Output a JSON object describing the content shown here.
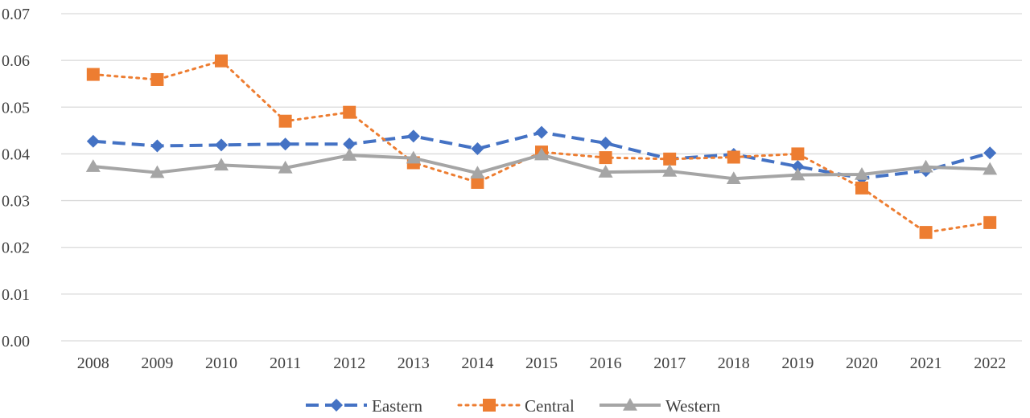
{
  "chart_data": {
    "type": "line",
    "title": "",
    "xlabel": "",
    "ylabel": "",
    "categories": [
      "2008",
      "2009",
      "2010",
      "2011",
      "2012",
      "2013",
      "2014",
      "2015",
      "2016",
      "2017",
      "2018",
      "2019",
      "2020",
      "2021",
      "2022"
    ],
    "ylim": [
      0,
      0.07
    ],
    "yticks": [
      "0.00",
      "0.01",
      "0.02",
      "0.03",
      "0.04",
      "0.05",
      "0.06",
      "0.07"
    ],
    "grid": true,
    "legend_position": "bottom-center",
    "series": [
      {
        "name": "Eastern",
        "color": "#4472C4",
        "line_style": "dashed",
        "marker": "diamond",
        "values": [
          0.0427,
          0.0417,
          0.0419,
          0.0421,
          0.0421,
          0.0438,
          0.0411,
          0.0446,
          0.0423,
          0.0389,
          0.0399,
          0.0373,
          0.0348,
          0.0364,
          0.0402
        ]
      },
      {
        "name": "Central",
        "color": "#ED7D31",
        "line_style": "dotted",
        "marker": "square",
        "values": [
          0.057,
          0.0559,
          0.0599,
          0.047,
          0.0489,
          0.0381,
          0.0339,
          0.0404,
          0.0392,
          0.0389,
          0.0393,
          0.04,
          0.0327,
          0.0232,
          0.0253
        ]
      },
      {
        "name": "Western",
        "color": "#A5A5A5",
        "line_style": "solid",
        "marker": "triangle",
        "values": [
          0.0373,
          0.036,
          0.0376,
          0.037,
          0.0397,
          0.0391,
          0.0359,
          0.0398,
          0.0361,
          0.0363,
          0.0347,
          0.0355,
          0.0356,
          0.0372,
          0.0367
        ]
      }
    ]
  }
}
